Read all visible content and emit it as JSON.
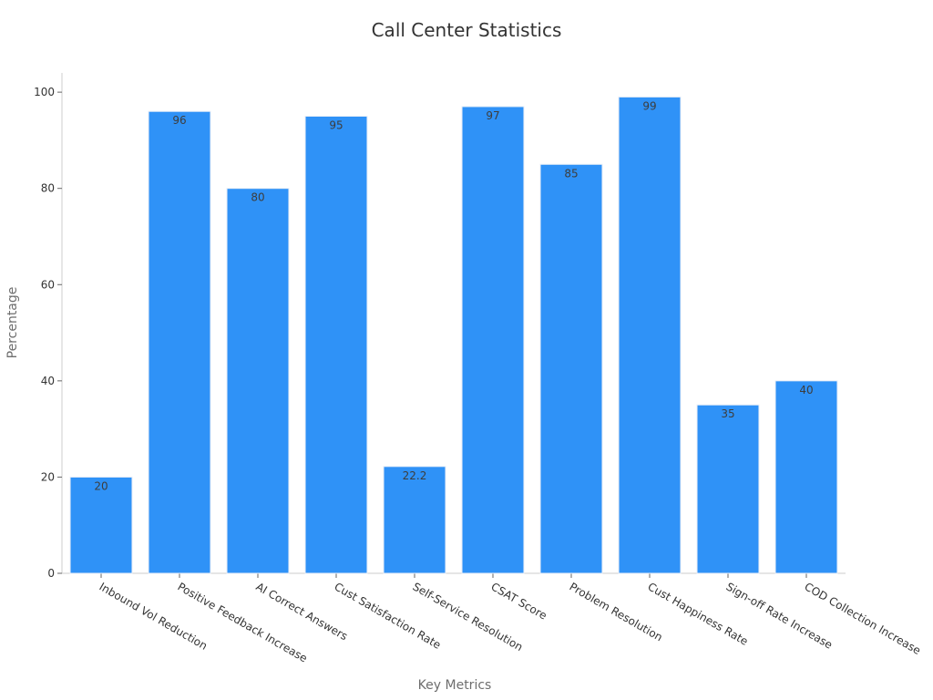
{
  "chart_data": {
    "type": "bar",
    "title": "Call Center Statistics",
    "xlabel": "Key Metrics",
    "ylabel": "Percentage",
    "categories": [
      "Inbound Vol Reduction",
      "Positive Feedback Increase",
      "AI Correct Answers",
      "Cust Satisfaction Rate",
      "Self-Service Resolution",
      "CSAT Score",
      "Problem Resolution",
      "Cust Happiness Rate",
      "Sign-off Rate Increase",
      "COD Collection Increase"
    ],
    "values": [
      20,
      96,
      80,
      95,
      22.2,
      97,
      85,
      99,
      35,
      40
    ],
    "value_labels": [
      "20",
      "96",
      "80",
      "95",
      "22.2",
      "97",
      "85",
      "99",
      "35",
      "40"
    ],
    "ylim": [
      0,
      104
    ],
    "yticks": [
      0,
      20,
      40,
      60,
      80,
      100
    ],
    "ytick_labels": [
      "0",
      "20",
      "40",
      "60",
      "80",
      "100"
    ],
    "grid": false,
    "bar_color": "#2f92f7"
  }
}
